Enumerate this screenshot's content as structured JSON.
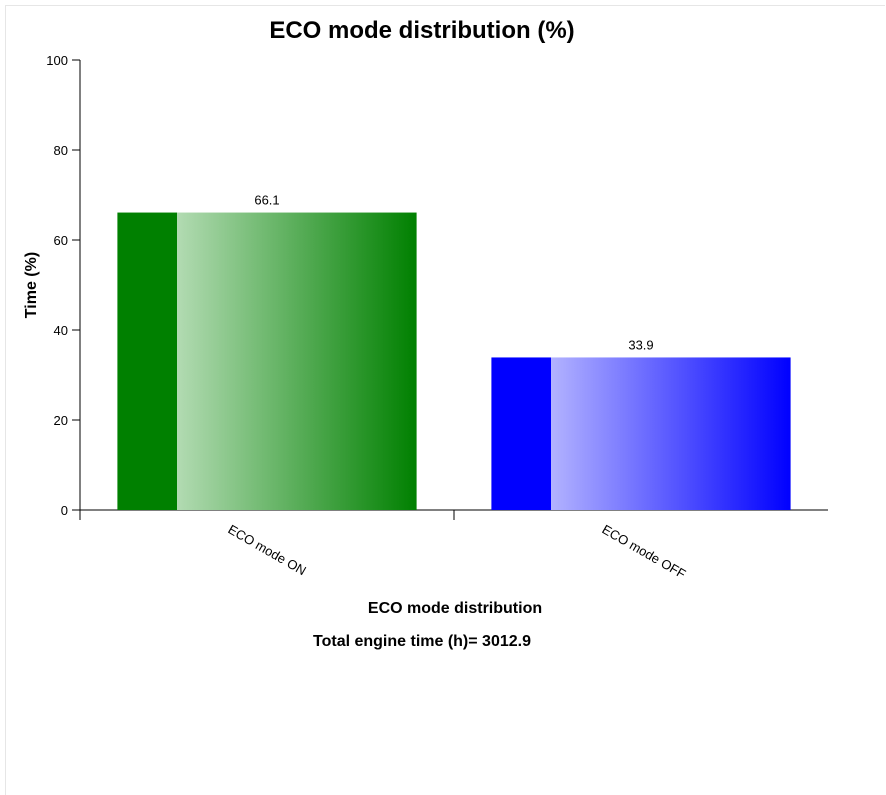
{
  "chart_data": {
    "type": "bar",
    "title": "ECO mode distribution (%)",
    "xlabel": "ECO mode distribution",
    "ylabel": "Time (%)",
    "footer": "Total engine time (h)= 3012.9",
    "categories": [
      "ECO mode ON",
      "ECO mode OFF"
    ],
    "values": [
      66.1,
      33.9
    ],
    "value_labels": [
      "66.1",
      "33.9"
    ],
    "colors": [
      "#008000",
      "#0000ff"
    ],
    "highlight_colors": [
      "#b2dbb2",
      "#b2b2ff"
    ],
    "ylim": [
      0,
      100
    ],
    "yticks": [
      0,
      20,
      40,
      60,
      80,
      100
    ],
    "grid": false
  }
}
